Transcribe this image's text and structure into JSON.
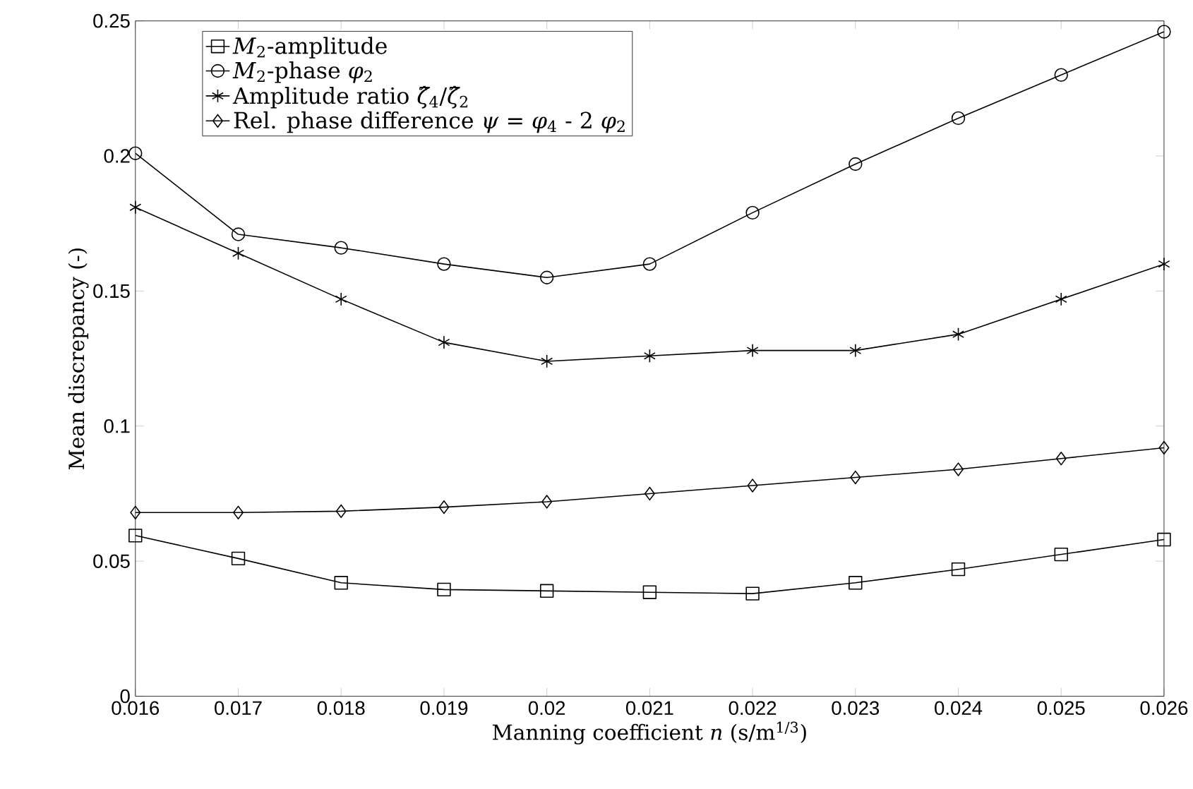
{
  "chart_data": {
    "type": "line",
    "xlabel": "Manning coefficient *n* (s/m$^{1/3}$)",
    "ylabel": "Mean discrepancy (-)",
    "x": [
      0.016,
      0.017,
      0.018,
      0.019,
      0.02,
      0.021,
      0.022,
      0.023,
      0.024,
      0.025,
      0.026
    ],
    "series": [
      {
        "name": "*M*$_{2}$-amplitude",
        "color": "#000000",
        "marker": "square",
        "values": [
          0.0595,
          0.051,
          0.042,
          0.0395,
          0.039,
          0.0385,
          0.038,
          0.042,
          0.047,
          0.0525,
          0.058
        ]
      },
      {
        "name": "*M*$_{2}$-phase *φ*$_{2}$",
        "color": "#000000",
        "marker": "circle",
        "values": [
          0.201,
          0.171,
          0.166,
          0.16,
          0.155,
          0.16,
          0.179,
          0.197,
          0.214,
          0.23,
          0.246
        ]
      },
      {
        "name": "Amplitude ratio *ζ̂*$_{4}$/*ζ̂*$_{2}$",
        "color": "#000000",
        "marker": "cross",
        "values": [
          0.181,
          0.164,
          0.147,
          0.131,
          0.124,
          0.126,
          0.128,
          0.128,
          0.134,
          0.147,
          0.16
        ]
      },
      {
        "name": "Rel. phase difference *ψ* = *φ*$_{4}$ - 2 *φ*$_{2}$",
        "color": "#000000",
        "marker": "diamond",
        "values": [
          0.068,
          0.068,
          0.0685,
          0.07,
          0.072,
          0.075,
          0.078,
          0.081,
          0.084,
          0.088,
          0.092
        ]
      }
    ],
    "xlim": [
      0.016,
      0.026
    ],
    "ylim": [
      0,
      0.25
    ],
    "xticks": [
      0.016,
      0.017,
      0.018,
      0.019,
      0.02,
      0.021,
      0.022,
      0.023,
      0.024,
      0.025,
      0.026
    ],
    "yticks": [
      0,
      0.05,
      0.1,
      0.15,
      0.2,
      0.25
    ],
    "legend": "top left",
    "line_style": "solid",
    "grid": false
  }
}
